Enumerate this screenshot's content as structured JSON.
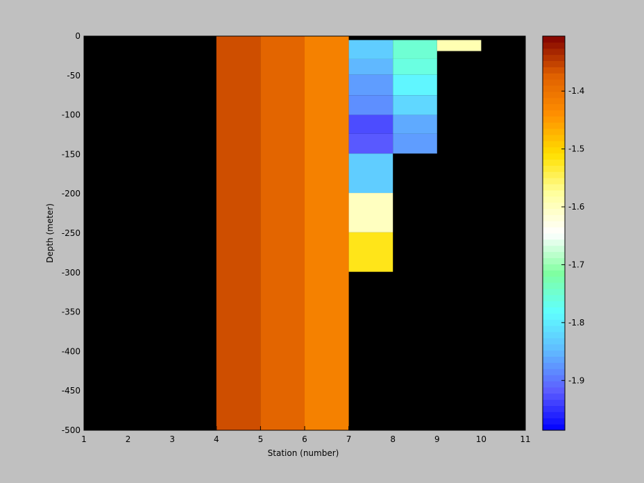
{
  "chart_data": {
    "type": "heatmap",
    "xlabel": "Station (number)",
    "ylabel": "Depth (meter)",
    "xlim": [
      1,
      11
    ],
    "xticks": [
      1,
      2,
      3,
      4,
      5,
      6,
      7,
      8,
      9,
      10,
      11
    ],
    "ylim": [
      -500,
      0
    ],
    "yticks": [
      0,
      -50,
      -100,
      -150,
      -200,
      -250,
      -300,
      -350,
      -400,
      -450,
      -500
    ],
    "background": "#000000",
    "clim": [
      -1.986,
      -1.305
    ],
    "cticks": [
      -1.4,
      -1.5,
      -1.6,
      -1.7,
      -1.8,
      -1.9
    ],
    "colormap": [
      "#0000ff",
      "#5c5cff",
      "#60b8ff",
      "#60ffff",
      "#80ffa0",
      "#ffffff",
      "#ffffa0",
      "#ffe000",
      "#ff9000",
      "#e06000",
      "#800000"
    ],
    "cells": [
      {
        "x": [
          4,
          5
        ],
        "y": [
          -500,
          0
        ],
        "value": -1.36
      },
      {
        "x": [
          5,
          6
        ],
        "y": [
          -500,
          0
        ],
        "value": -1.38
      },
      {
        "x": [
          6,
          7
        ],
        "y": [
          -500,
          0
        ],
        "value": -1.42
      },
      {
        "x": [
          7,
          8
        ],
        "y": [
          -29,
          -5
        ],
        "value": -1.83
      },
      {
        "x": [
          7,
          8
        ],
        "y": [
          -49,
          -29
        ],
        "value": -1.85
      },
      {
        "x": [
          7,
          8
        ],
        "y": [
          -75,
          -49
        ],
        "value": -1.87
      },
      {
        "x": [
          7,
          8
        ],
        "y": [
          -100,
          -75
        ],
        "value": -1.88
      },
      {
        "x": [
          7,
          8
        ],
        "y": [
          -124,
          -100
        ],
        "value": -1.93
      },
      {
        "x": [
          7,
          8
        ],
        "y": [
          -149,
          -124
        ],
        "value": -1.92
      },
      {
        "x": [
          7,
          8
        ],
        "y": [
          -199,
          -149
        ],
        "value": -1.83
      },
      {
        "x": [
          7,
          8
        ],
        "y": [
          -249,
          -199
        ],
        "value": -1.6
      },
      {
        "x": [
          7,
          8
        ],
        "y": [
          -299,
          -249
        ],
        "value": -1.52
      },
      {
        "x": [
          8,
          9
        ],
        "y": [
          -29,
          -5
        ],
        "value": -1.75
      },
      {
        "x": [
          8,
          9
        ],
        "y": [
          -49,
          -29
        ],
        "value": -1.76
      },
      {
        "x": [
          8,
          9
        ],
        "y": [
          -75,
          -49
        ],
        "value": -1.79
      },
      {
        "x": [
          8,
          9
        ],
        "y": [
          -100,
          -75
        ],
        "value": -1.82
      },
      {
        "x": [
          8,
          9
        ],
        "y": [
          -124,
          -100
        ],
        "value": -1.86
      },
      {
        "x": [
          8,
          9
        ],
        "y": [
          -149,
          -124
        ],
        "value": -1.87
      },
      {
        "x": [
          9,
          10
        ],
        "y": [
          -19,
          -5
        ],
        "value": -1.59
      }
    ]
  }
}
